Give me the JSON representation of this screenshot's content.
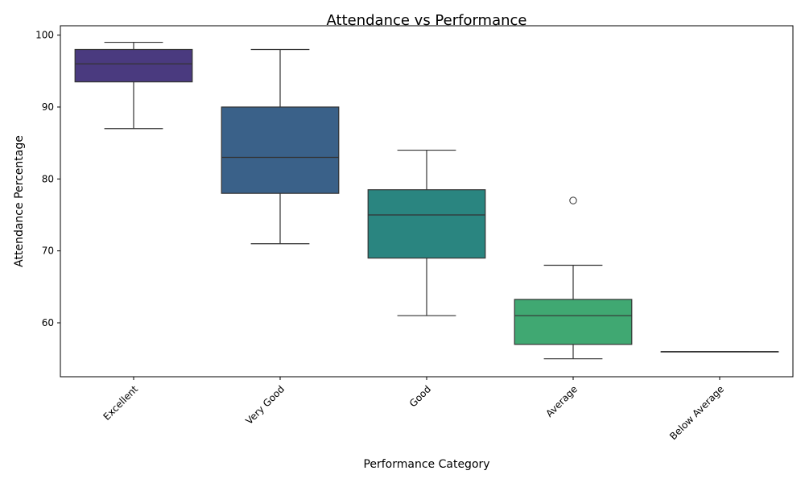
{
  "chart_data": {
    "type": "box",
    "title": "Attendance vs Performance",
    "xlabel": "Performance Category",
    "ylabel": "Attendance Percentage",
    "ylim": [
      52.5,
      101.3
    ],
    "yticks": [
      60,
      70,
      80,
      90,
      100
    ],
    "grid": false,
    "categories": [
      "Excellent",
      "Very Good",
      "Good",
      "Average",
      "Below Average"
    ],
    "boxes": [
      {
        "category": "Excellent",
        "whisker_low": 87,
        "q1": 93.5,
        "median": 96,
        "q3": 98,
        "whisker_high": 99,
        "outliers": [],
        "color": "#4a3a7f"
      },
      {
        "category": "Very Good",
        "whisker_low": 71,
        "q1": 78,
        "median": 83,
        "q3": 90,
        "whisker_high": 98,
        "outliers": [],
        "color": "#3a6189"
      },
      {
        "category": "Good",
        "whisker_low": 61,
        "q1": 69,
        "median": 75,
        "q3": 78.5,
        "whisker_high": 84,
        "outliers": [],
        "color": "#2a8580"
      },
      {
        "category": "Average",
        "whisker_low": 55,
        "q1": 57,
        "median": 61,
        "q3": 63.25,
        "whisker_high": 68,
        "outliers": [
          77
        ],
        "color": "#40a872"
      },
      {
        "category": "Below Average",
        "whisker_low": 56,
        "q1": 56,
        "median": 56,
        "q3": 56,
        "whisker_high": 56,
        "outliers": [],
        "color": "#8fc95c"
      }
    ]
  }
}
